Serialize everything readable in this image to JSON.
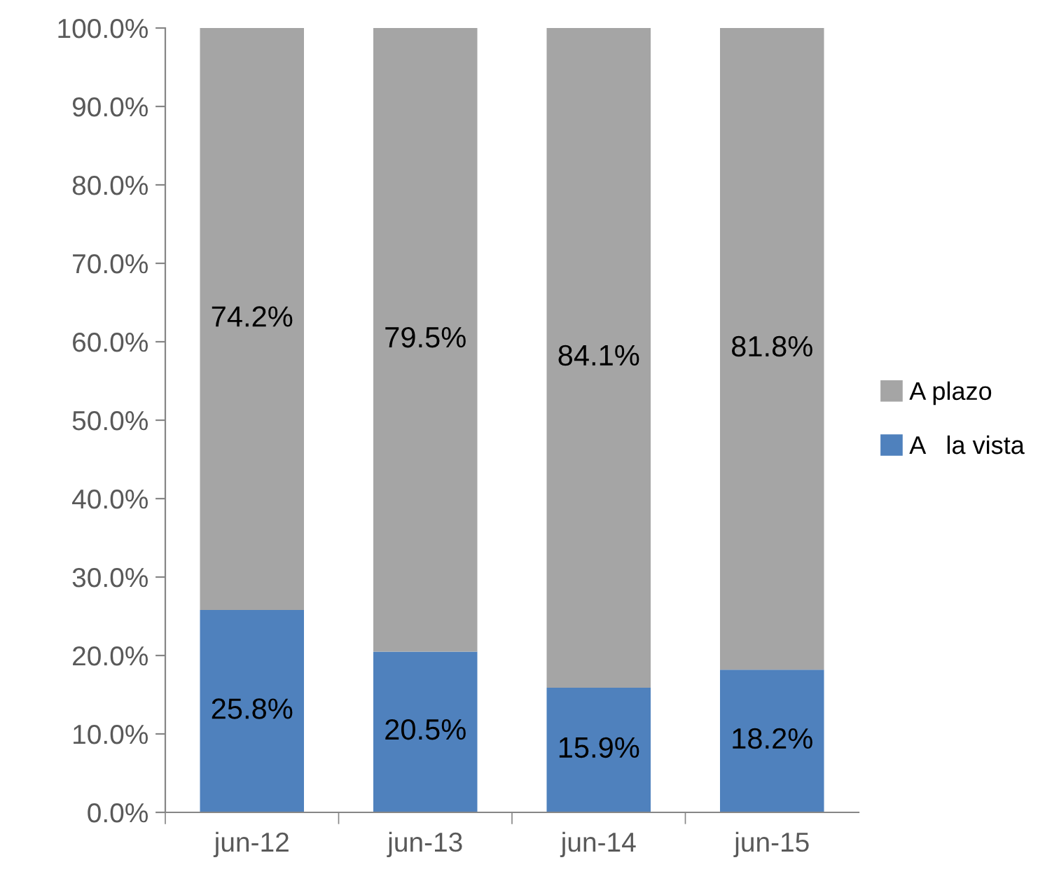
{
  "chart_data": {
    "type": "bar",
    "stacked": true,
    "categories": [
      "jun-12",
      "jun-13",
      "jun-14",
      "jun-15"
    ],
    "series": [
      {
        "name": "A   la vista",
        "color": "#4f81bd",
        "values": [
          25.8,
          20.5,
          15.9,
          18.2
        ],
        "value_labels": [
          "25.8%",
          "20.5%",
          "15.9%",
          "18.2%"
        ]
      },
      {
        "name": "A plazo",
        "color": "#a5a5a5",
        "values": [
          74.2,
          79.5,
          84.1,
          81.8
        ],
        "value_labels": [
          "74.2%",
          "79.5%",
          "84.1%",
          "81.8%"
        ]
      }
    ],
    "ylim": [
      0,
      100
    ],
    "yticks": [
      {
        "value": 0,
        "label": "0.0%"
      },
      {
        "value": 10,
        "label": "10.0%"
      },
      {
        "value": 20,
        "label": "20.0%"
      },
      {
        "value": 30,
        "label": "30.0%"
      },
      {
        "value": 40,
        "label": "40.0%"
      },
      {
        "value": 50,
        "label": "50.0%"
      },
      {
        "value": 60,
        "label": "60.0%"
      },
      {
        "value": 70,
        "label": "70.0%"
      },
      {
        "value": 80,
        "label": "80.0%"
      },
      {
        "value": 90,
        "label": "90.0%"
      },
      {
        "value": 100,
        "label": "100.0%"
      }
    ],
    "grid": false,
    "legend": "right"
  }
}
